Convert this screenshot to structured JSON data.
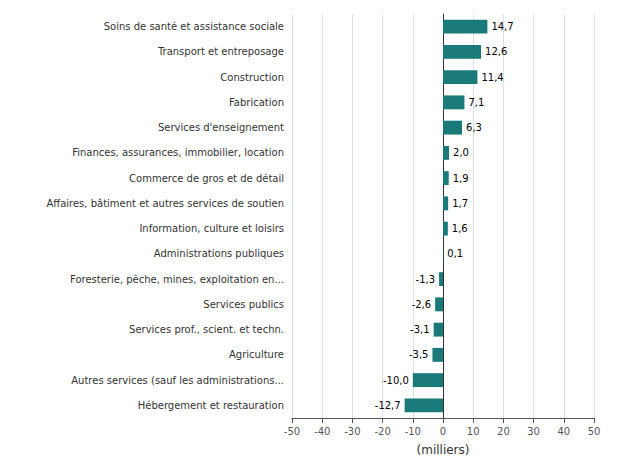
{
  "chart_data": {
    "type": "bar",
    "orientation": "horizontal",
    "categories": [
      "Soins de santé et assistance sociale",
      "Transport et entreposage",
      "Construction",
      "Fabrication",
      "Services d'enseignement",
      "Finances, assurances, immobilier, location",
      "Commerce de gros et de détail",
      "Affaires, bâtiment et autres services de soutien",
      "Information, culture et loisirs",
      "Administrations publiques",
      "Foresterie, pêche, mines, exploitation en...",
      "Services publics",
      "Services prof., scient. et techn.",
      "Agriculture",
      "Autres services (sauf les administrations...",
      "Hébergement et restauration"
    ],
    "values": [
      14.7,
      12.6,
      11.4,
      7.1,
      6.3,
      2.0,
      1.9,
      1.7,
      1.6,
      0.1,
      -1.3,
      -2.6,
      -3.1,
      -3.5,
      -10.0,
      -12.7
    ],
    "value_labels": [
      "14,7",
      "12,6",
      "11,4",
      "7,1",
      "6,3",
      "2,0",
      "1,9",
      "1,7",
      "1,6",
      "0,1",
      "-1,3",
      "-2,6",
      "-3,1",
      "-3,5",
      "-10,0",
      "-12,7"
    ],
    "data_labels": true,
    "color": "#1a7a7a",
    "xlim": [
      -50,
      50
    ],
    "xticks": [
      -50,
      -40,
      -30,
      -20,
      -10,
      0,
      10,
      20,
      30,
      40,
      50
    ],
    "xlabel": "(milliers)",
    "grid": true
  }
}
